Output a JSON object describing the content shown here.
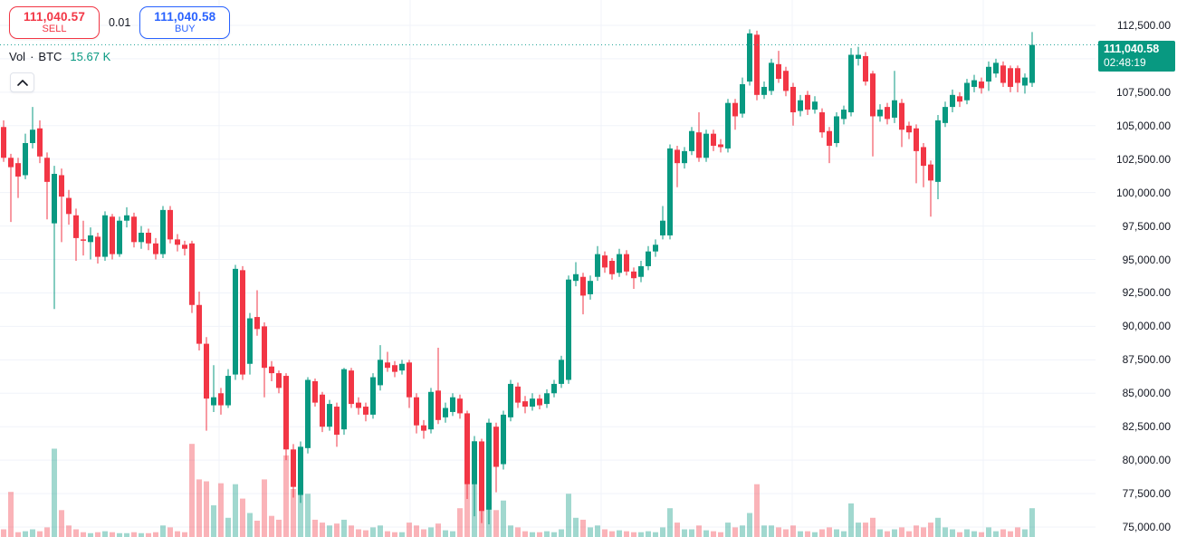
{
  "header": {
    "sell_button": {
      "price": "111,040.57",
      "label": "SELL"
    },
    "spread": "0.01",
    "buy_button": {
      "price": "111,040.58",
      "label": "BUY"
    }
  },
  "legend": {
    "name": "Vol",
    "separator": "·",
    "symbol": "BTC",
    "value": "15.67 K"
  },
  "price_label": {
    "price": "111,040.58",
    "countdown": "02:48:19"
  },
  "price_axis": {
    "labels": [
      {
        "text": "112,500.00",
        "price": 112500
      },
      {
        "text": "107,500.00",
        "price": 107500
      },
      {
        "text": "105,000.00",
        "price": 105000
      },
      {
        "text": "102,500.00",
        "price": 102500
      },
      {
        "text": "100,000.00",
        "price": 100000
      },
      {
        "text": "97,500.00",
        "price": 97500
      },
      {
        "text": "95,000.00",
        "price": 95000
      },
      {
        "text": "92,500.00",
        "price": 92500
      },
      {
        "text": "90,000.00",
        "price": 90000
      },
      {
        "text": "87,500.00",
        "price": 87500
      },
      {
        "text": "85,000.00",
        "price": 85000
      },
      {
        "text": "82,500.00",
        "price": 82500
      },
      {
        "text": "80,000.00",
        "price": 80000
      },
      {
        "text": "77,500.00",
        "price": 77500
      },
      {
        "text": "75,000.00",
        "price": 75000
      }
    ]
  },
  "colors": {
    "up": "#089981",
    "down": "#f23645",
    "vol_up": "rgba(8,153,129,0.38)",
    "vol_down": "rgba(242,54,69,0.38)",
    "grid": "#f0f3fa",
    "axis_text": "#131722",
    "dotted_line": "#26a69a",
    "badge_bg": "#089981",
    "sell": "#f23645",
    "buy": "#2962ff"
  },
  "chart_data": {
    "type": "candlestick+volume",
    "symbol": "BTC",
    "title": "BTC candlestick chart with volume",
    "last_price": 111040.58,
    "y_axis": {
      "min": 75000,
      "max": 112500,
      "tick_step": 2500
    },
    "grid": true,
    "candles": [
      [
        105200,
        105400,
        104200,
        104500,
        0.05
      ],
      [
        104900,
        105400,
        102300,
        102600,
        0.08
      ],
      [
        102600,
        102900,
        97800,
        101900,
        0.47
      ],
      [
        102200,
        102600,
        99600,
        101200,
        0.05
      ],
      [
        101300,
        104400,
        101000,
        103700,
        0.06
      ],
      [
        103700,
        106400,
        103300,
        104700,
        0.08
      ],
      [
        104800,
        105400,
        102200,
        102700,
        0.06
      ],
      [
        102600,
        103000,
        98000,
        100800,
        0.1
      ],
      [
        97700,
        102000,
        91300,
        101400,
        0.92
      ],
      [
        101300,
        101800,
        96300,
        99700,
        0.28
      ],
      [
        99600,
        100200,
        97600,
        98400,
        0.12
      ],
      [
        98300,
        98800,
        94900,
        96600,
        0.08
      ],
      [
        96500,
        97900,
        95300,
        96400,
        0.05
      ],
      [
        96300,
        97400,
        95000,
        96800,
        0.04
      ],
      [
        96700,
        97000,
        94700,
        95200,
        0.05
      ],
      [
        95200,
        98600,
        94900,
        98300,
        0.06
      ],
      [
        98200,
        98400,
        95000,
        95400,
        0.05
      ],
      [
        95400,
        98200,
        95200,
        97900,
        0.04
      ],
      [
        97900,
        98900,
        97400,
        98300,
        0.04
      ],
      [
        98200,
        98500,
        95900,
        96300,
        0.05
      ],
      [
        96300,
        97500,
        95800,
        97000,
        0.04
      ],
      [
        97000,
        97300,
        95700,
        96200,
        0.04
      ],
      [
        96200,
        96600,
        95000,
        95400,
        0.05
      ],
      [
        95400,
        99000,
        95100,
        98700,
        0.12
      ],
      [
        98700,
        99000,
        96200,
        96500,
        0.1
      ],
      [
        96500,
        96900,
        95600,
        96100,
        0.06
      ],
      [
        96100,
        96400,
        95300,
        95800,
        0.05
      ],
      [
        96200,
        96400,
        91000,
        91600,
        0.97
      ],
      [
        91600,
        92600,
        88200,
        88700,
        0.6
      ],
      [
        88700,
        89200,
        82200,
        84600,
        0.58
      ],
      [
        84100,
        87100,
        83600,
        84700,
        0.33
      ],
      [
        85000,
        85400,
        83400,
        84100,
        0.56
      ],
      [
        84100,
        86800,
        83900,
        86300,
        0.2
      ],
      [
        86400,
        94600,
        86000,
        94300,
        0.55
      ],
      [
        94200,
        94500,
        86000,
        86400,
        0.4
      ],
      [
        87200,
        91000,
        86400,
        90600,
        0.25
      ],
      [
        90700,
        92700,
        89300,
        89800,
        0.17
      ],
      [
        90000,
        90300,
        84700,
        86900,
        0.6
      ],
      [
        87000,
        87400,
        85900,
        86500,
        0.22
      ],
      [
        86500,
        86700,
        85000,
        85400,
        0.18
      ],
      [
        86300,
        86500,
        80000,
        80800,
        0.85
      ],
      [
        80800,
        81200,
        77200,
        78000,
        0.5
      ],
      [
        77400,
        81400,
        76800,
        81000,
        0.8
      ],
      [
        80900,
        86200,
        80500,
        86000,
        0.45
      ],
      [
        85900,
        86100,
        84000,
        84300,
        0.18
      ],
      [
        84900,
        85100,
        82100,
        82500,
        0.15
      ],
      [
        82500,
        84500,
        82200,
        84200,
        0.12
      ],
      [
        84000,
        84300,
        81000,
        81900,
        0.14
      ],
      [
        82300,
        86900,
        81900,
        86800,
        0.18
      ],
      [
        86700,
        86900,
        83900,
        84200,
        0.12
      ],
      [
        84300,
        84700,
        83400,
        83900,
        0.08
      ],
      [
        84000,
        84300,
        82900,
        83400,
        0.07
      ],
      [
        83400,
        86500,
        83100,
        86200,
        0.1
      ],
      [
        85600,
        88600,
        85200,
        87500,
        0.12
      ],
      [
        87300,
        88100,
        86600,
        86900,
        0.06
      ],
      [
        87100,
        87400,
        86200,
        86600,
        0.05
      ],
      [
        86700,
        87500,
        86400,
        87200,
        0.05
      ],
      [
        87300,
        87500,
        83900,
        84700,
        0.15
      ],
      [
        84700,
        85000,
        82000,
        82600,
        0.12
      ],
      [
        82600,
        83000,
        81600,
        82200,
        0.08
      ],
      [
        82300,
        85400,
        82000,
        85100,
        0.1
      ],
      [
        85200,
        88400,
        82700,
        83000,
        0.14
      ],
      [
        83200,
        84300,
        82800,
        83900,
        0.07
      ],
      [
        83600,
        85000,
        83300,
        84700,
        0.06
      ],
      [
        84600,
        84900,
        83100,
        83500,
        0.3
      ],
      [
        83500,
        83700,
        77100,
        78200,
        0.55
      ],
      [
        78200,
        81800,
        75800,
        81400,
        1.0
      ],
      [
        81400,
        81600,
        75300,
        76200,
        0.55
      ],
      [
        76300,
        83100,
        75200,
        82800,
        0.6
      ],
      [
        82500,
        82800,
        77600,
        79500,
        0.28
      ],
      [
        79700,
        83700,
        79300,
        83400,
        0.38
      ],
      [
        83200,
        86000,
        82900,
        85700,
        0.12
      ],
      [
        85500,
        85800,
        83900,
        84300,
        0.1
      ],
      [
        84400,
        84800,
        83500,
        84000,
        0.06
      ],
      [
        84000,
        85000,
        83700,
        84600,
        0.05
      ],
      [
        84600,
        84900,
        83800,
        84100,
        0.05
      ],
      [
        84200,
        85300,
        83900,
        85000,
        0.06
      ],
      [
        85000,
        86000,
        84700,
        85700,
        0.05
      ],
      [
        85700,
        87800,
        85400,
        87500,
        0.08
      ],
      [
        86000,
        93800,
        85700,
        93500,
        0.45
      ],
      [
        93400,
        94800,
        93000,
        93900,
        0.2
      ],
      [
        93700,
        94000,
        90900,
        92300,
        0.18
      ],
      [
        92400,
        93800,
        92000,
        93400,
        0.1
      ],
      [
        93700,
        96000,
        93400,
        95400,
        0.12
      ],
      [
        95300,
        95600,
        94000,
        94400,
        0.08
      ],
      [
        94900,
        95100,
        93500,
        93900,
        0.06
      ],
      [
        94000,
        95800,
        93700,
        95400,
        0.07
      ],
      [
        95400,
        95700,
        93800,
        94100,
        0.06
      ],
      [
        94100,
        94400,
        92800,
        93600,
        0.05
      ],
      [
        93700,
        94900,
        93300,
        94500,
        0.05
      ],
      [
        94500,
        96000,
        94200,
        95600,
        0.06
      ],
      [
        95600,
        96500,
        95200,
        96100,
        0.05
      ],
      [
        96800,
        99000,
        96500,
        97900,
        0.1
      ],
      [
        96800,
        103600,
        96500,
        103300,
        0.3
      ],
      [
        103200,
        103500,
        100400,
        102200,
        0.15
      ],
      [
        102200,
        103400,
        101800,
        103100,
        0.08
      ],
      [
        103100,
        104900,
        102800,
        104600,
        0.08
      ],
      [
        104500,
        106000,
        102300,
        102600,
        0.12
      ],
      [
        102600,
        104700,
        102300,
        104400,
        0.07
      ],
      [
        104400,
        104700,
        103100,
        103500,
        0.06
      ],
      [
        103600,
        104000,
        103000,
        103400,
        0.05
      ],
      [
        103300,
        107000,
        103000,
        106700,
        0.15
      ],
      [
        106700,
        107000,
        104700,
        105700,
        0.1
      ],
      [
        105900,
        108600,
        105600,
        108100,
        0.12
      ],
      [
        108300,
        112200,
        108000,
        111900,
        0.25
      ],
      [
        111800,
        112100,
        106900,
        107300,
        0.55
      ],
      [
        107300,
        108300,
        107000,
        107900,
        0.12
      ],
      [
        107600,
        110000,
        107300,
        109700,
        0.12
      ],
      [
        109600,
        110600,
        108200,
        108500,
        0.1
      ],
      [
        109100,
        109400,
        107200,
        107600,
        0.08
      ],
      [
        107900,
        108200,
        105000,
        106000,
        0.12
      ],
      [
        106100,
        107300,
        105700,
        106900,
        0.06
      ],
      [
        107300,
        107600,
        105800,
        106200,
        0.06
      ],
      [
        106200,
        107200,
        105900,
        106800,
        0.05
      ],
      [
        106000,
        106300,
        104100,
        104500,
        0.08
      ],
      [
        104600,
        104900,
        102200,
        103500,
        0.1
      ],
      [
        103700,
        106000,
        103400,
        105700,
        0.08
      ],
      [
        105500,
        106500,
        105100,
        106200,
        0.06
      ],
      [
        106000,
        110800,
        105700,
        110300,
        0.35
      ],
      [
        110000,
        110900,
        109500,
        110300,
        0.15
      ],
      [
        110200,
        110500,
        108000,
        108300,
        0.15
      ],
      [
        108900,
        109100,
        102700,
        105700,
        0.2
      ],
      [
        105700,
        106600,
        105300,
        106200,
        0.08
      ],
      [
        106400,
        106700,
        105100,
        105500,
        0.06
      ],
      [
        105600,
        109100,
        105200,
        106900,
        0.08
      ],
      [
        106700,
        107000,
        103400,
        104700,
        0.1
      ],
      [
        105000,
        105300,
        104000,
        104500,
        0.06
      ],
      [
        104800,
        105100,
        100700,
        103100,
        0.12
      ],
      [
        103400,
        103700,
        100400,
        102000,
        0.1
      ],
      [
        102100,
        102400,
        98200,
        100900,
        0.15
      ],
      [
        100800,
        105800,
        99500,
        105400,
        0.2
      ],
      [
        105200,
        106800,
        104900,
        106400,
        0.1
      ],
      [
        106400,
        107700,
        106000,
        107300,
        0.08
      ],
      [
        107200,
        107500,
        106400,
        106800,
        0.05
      ],
      [
        106900,
        108500,
        106600,
        108200,
        0.08
      ],
      [
        107900,
        108800,
        107500,
        108400,
        0.06
      ],
      [
        108300,
        108600,
        107400,
        107800,
        0.05
      ],
      [
        108300,
        109800,
        107600,
        109400,
        0.1
      ],
      [
        108900,
        110000,
        108600,
        109700,
        0.06
      ],
      [
        109500,
        109800,
        107900,
        108200,
        0.08
      ],
      [
        109300,
        109500,
        107500,
        107900,
        0.06
      ],
      [
        109300,
        109500,
        107500,
        108200,
        0.1
      ],
      [
        108000,
        108900,
        107400,
        108600,
        0.08
      ],
      [
        108200,
        112000,
        107900,
        111040.58,
        0.3
      ]
    ]
  }
}
